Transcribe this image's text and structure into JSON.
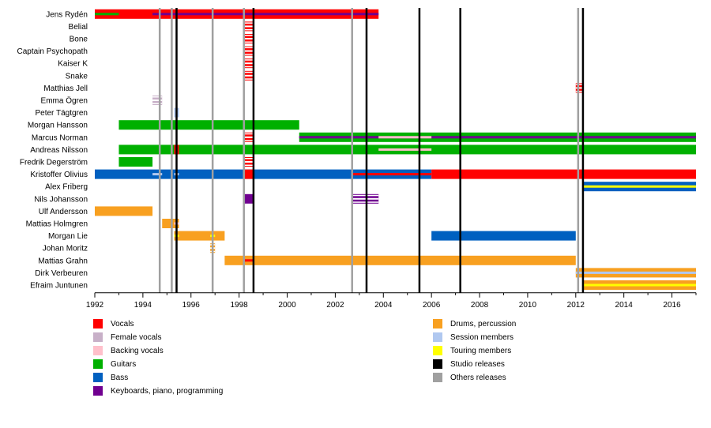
{
  "chart_data": {
    "type": "timeline",
    "x_range": [
      1992,
      2017
    ],
    "x_ticks": [
      "1992",
      "1994",
      "1996",
      "1998",
      "2000",
      "2002",
      "2004",
      "2006",
      "2008",
      "2010",
      "2012",
      "2014",
      "2016"
    ],
    "colors": {
      "vocals": "#ff0000",
      "female_vocals": "#c8b0c8",
      "backing_vocals": "#ffc0cb",
      "guitars": "#00b000",
      "bass": "#0060c0",
      "keyboards": "#700090",
      "drums": "#f8a020",
      "session": "#b0c8f0",
      "touring": "#ffff00",
      "studio_release": "#000000",
      "other_release": "#a0a0a0"
    },
    "members": [
      {
        "name": "Jens Rydén",
        "bars": [
          {
            "start": 1992.0,
            "end": 2003.8,
            "role": "vocals"
          },
          {
            "start": 1992.0,
            "end": 1993.0,
            "role": "guitars",
            "thin": true
          },
          {
            "start": 1994.4,
            "end": 2003.8,
            "role": "keyboards",
            "thin": true
          }
        ]
      },
      {
        "name": "Belial",
        "bars": [
          {
            "start": 1998.2,
            "end": 1998.6,
            "role": "vocals",
            "stripe": "#ffffff"
          }
        ]
      },
      {
        "name": "Bone",
        "bars": [
          {
            "start": 1998.2,
            "end": 1998.6,
            "role": "vocals",
            "stripe": "#ffffff"
          }
        ]
      },
      {
        "name": "Captain Psychopath",
        "bars": [
          {
            "start": 1998.2,
            "end": 1998.6,
            "role": "vocals",
            "stripe": "#ffffff"
          }
        ]
      },
      {
        "name": "Kaiser K",
        "bars": [
          {
            "start": 1998.2,
            "end": 1998.6,
            "role": "vocals",
            "stripe": "#ffffff"
          }
        ]
      },
      {
        "name": "Snake",
        "bars": [
          {
            "start": 1998.2,
            "end": 1998.6,
            "role": "vocals",
            "stripe": "#ffffff"
          }
        ]
      },
      {
        "name": "Matthias Jell",
        "bars": [
          {
            "start": 2012.0,
            "end": 2012.3,
            "role": "vocals",
            "stripe": "#ffffff"
          }
        ]
      },
      {
        "name": "Emma Ögren",
        "bars": [
          {
            "start": 1994.4,
            "end": 1994.8,
            "role": "female_vocals",
            "stripe": "#ffffff"
          }
        ]
      },
      {
        "name": "Peter Tägtgren",
        "bars": [
          {
            "start": 1995.3,
            "end": 1995.5,
            "role": "session"
          }
        ]
      },
      {
        "name": "Morgan Hansson",
        "bars": [
          {
            "start": 1993.0,
            "end": 2000.5,
            "role": "guitars"
          }
        ]
      },
      {
        "name": "Marcus Norman",
        "bars": [
          {
            "start": 1998.2,
            "end": 1998.6,
            "role": "vocals",
            "stripe": "#ffffff"
          },
          {
            "start": 2000.5,
            "end": 2017.0,
            "role": "guitars"
          },
          {
            "start": 2000.5,
            "end": 2017.0,
            "role": "keyboards",
            "thin": true
          },
          {
            "start": 2003.8,
            "end": 2006.0,
            "role": "backing_vocals",
            "thin": true
          }
        ]
      },
      {
        "name": "Andreas Nilsson",
        "bars": [
          {
            "start": 1993.0,
            "end": 2017.0,
            "role": "guitars"
          },
          {
            "start": 1995.3,
            "end": 1995.5,
            "role": "vocals"
          },
          {
            "start": 2003.8,
            "end": 2006.0,
            "role": "backing_vocals",
            "thin": true
          }
        ]
      },
      {
        "name": "Fredrik Degerström",
        "bars": [
          {
            "start": 1993.0,
            "end": 1994.4,
            "role": "guitars"
          },
          {
            "start": 1998.2,
            "end": 1998.6,
            "role": "vocals",
            "stripe": "#ffffff"
          }
        ]
      },
      {
        "name": "Kristoffer Olivius",
        "bars": [
          {
            "start": 1992.0,
            "end": 2006.0,
            "role": "bass"
          },
          {
            "start": 2006.0,
            "end": 2017.0,
            "role": "vocals"
          },
          {
            "start": 2002.7,
            "end": 2006.0,
            "role": "vocals",
            "thin": true
          },
          {
            "start": 1998.2,
            "end": 1998.6,
            "role": "vocals"
          },
          {
            "start": 1994.4,
            "end": 1994.8,
            "role": "session",
            "thin": true
          },
          {
            "start": 1995.3,
            "end": 1995.5,
            "role": "session",
            "thin": true
          }
        ]
      },
      {
        "name": "Alex Friberg",
        "bars": [
          {
            "start": 2012.3,
            "end": 2017.0,
            "role": "bass"
          },
          {
            "start": 2012.3,
            "end": 2017.0,
            "role": "touring",
            "thin": true
          }
        ]
      },
      {
        "name": "Nils Johansson",
        "bars": [
          {
            "start": 1998.2,
            "end": 1998.6,
            "role": "keyboards"
          },
          {
            "start": 2002.7,
            "end": 2003.8,
            "role": "keyboards",
            "stripe": "#ffffff"
          }
        ]
      },
      {
        "name": "Ulf Andersson",
        "bars": [
          {
            "start": 1992.0,
            "end": 1994.4,
            "role": "drums"
          }
        ]
      },
      {
        "name": "Mattias Holmgren",
        "bars": [
          {
            "start": 1994.8,
            "end": 1995.5,
            "role": "drums"
          },
          {
            "start": 1995.3,
            "end": 1995.5,
            "role": "backing_vocals",
            "thin": true
          }
        ]
      },
      {
        "name": "Morgan Lie",
        "bars": [
          {
            "start": 1995.3,
            "end": 1997.4,
            "role": "drums"
          },
          {
            "start": 1995.3,
            "end": 1995.5,
            "role": "touring",
            "thin": true
          },
          {
            "start": 1996.8,
            "end": 1997.0,
            "role": "touring",
            "thin": true
          },
          {
            "start": 2006.0,
            "end": 2012.0,
            "role": "bass"
          }
        ]
      },
      {
        "name": "Johan Moritz",
        "bars": [
          {
            "start": 1996.8,
            "end": 1997.0,
            "role": "drums",
            "stripe": "#ffffff"
          }
        ]
      },
      {
        "name": "Mattias Grahn",
        "bars": [
          {
            "start": 1997.4,
            "end": 2012.0,
            "role": "drums"
          },
          {
            "start": 1998.2,
            "end": 1998.6,
            "role": "vocals",
            "thin": true
          }
        ]
      },
      {
        "name": "Dirk Verbeuren",
        "bars": [
          {
            "start": 2012.0,
            "end": 2017.0,
            "role": "drums"
          },
          {
            "start": 2012.0,
            "end": 2017.0,
            "role": "session",
            "thin": true
          }
        ]
      },
      {
        "name": "Efraim Juntunen",
        "bars": [
          {
            "start": 2012.3,
            "end": 2017.0,
            "role": "drums"
          },
          {
            "start": 2012.3,
            "end": 2017.0,
            "role": "touring",
            "thin": true
          }
        ]
      }
    ],
    "studio_releases": [
      1995.4,
      1998.6,
      2003.3,
      2005.5,
      2007.2,
      2012.3
    ],
    "other_releases": [
      1994.7,
      1995.2,
      1996.9,
      1998.2,
      2002.7,
      2012.1
    ],
    "legend": [
      {
        "label": "Vocals",
        "role": "vocals"
      },
      {
        "label": "Female vocals",
        "role": "female_vocals"
      },
      {
        "label": "Backing vocals",
        "role": "backing_vocals"
      },
      {
        "label": "Guitars",
        "role": "guitars"
      },
      {
        "label": "Bass",
        "role": "bass"
      },
      {
        "label": "Keyboards, piano, programming",
        "role": "keyboards"
      },
      {
        "label": "Drums, percussion",
        "role": "drums"
      },
      {
        "label": "Session members",
        "role": "session"
      },
      {
        "label": "Touring members",
        "role": "touring"
      },
      {
        "label": "Studio releases",
        "role": "studio_release"
      },
      {
        "label": "Others releases",
        "role": "other_release"
      }
    ]
  }
}
